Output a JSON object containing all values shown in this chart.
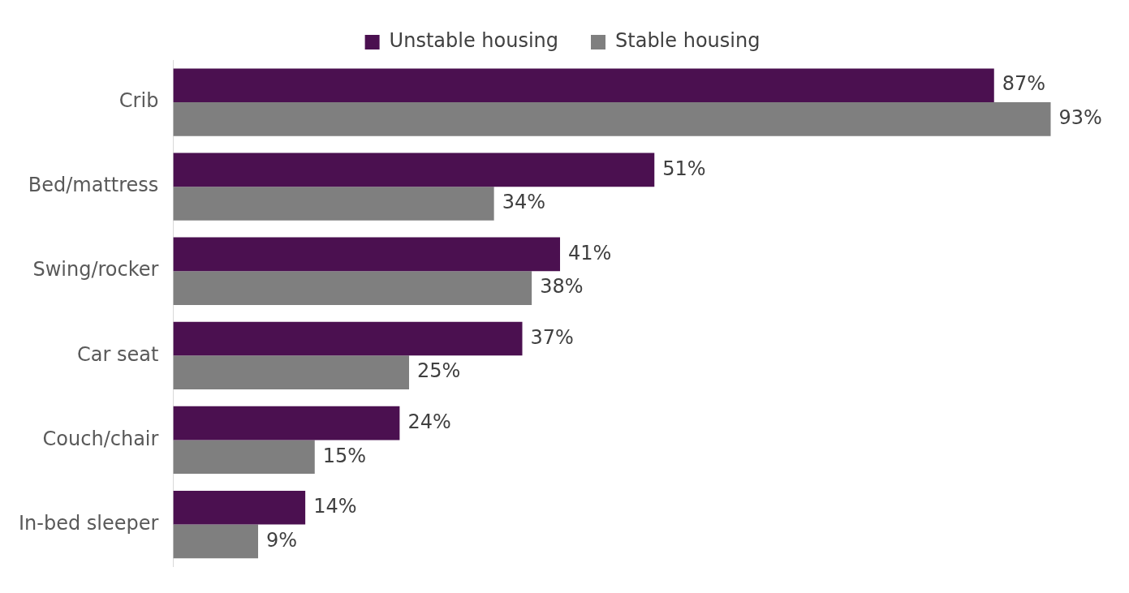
{
  "chart_data": {
    "type": "bar",
    "orientation": "horizontal",
    "categories": [
      "Crib",
      "Bed/mattress",
      "Swing/rocker",
      "Car seat",
      "Couch/chair",
      "In-bed sleeper"
    ],
    "series": [
      {
        "name": "Unstable housing",
        "color": "#4b1050",
        "values": [
          87,
          51,
          41,
          37,
          24,
          14
        ],
        "value_labels": [
          "87%",
          "51%",
          "41%",
          "37%",
          "24%",
          "14%"
        ]
      },
      {
        "name": "Stable housing",
        "color": "#7f7f7f",
        "values": [
          93,
          34,
          38,
          25,
          15,
          9
        ],
        "value_labels": [
          "93%",
          "34%",
          "38%",
          "25%",
          "15%",
          "9%"
        ]
      }
    ],
    "legend": "top",
    "tick_labels": "y"
  }
}
